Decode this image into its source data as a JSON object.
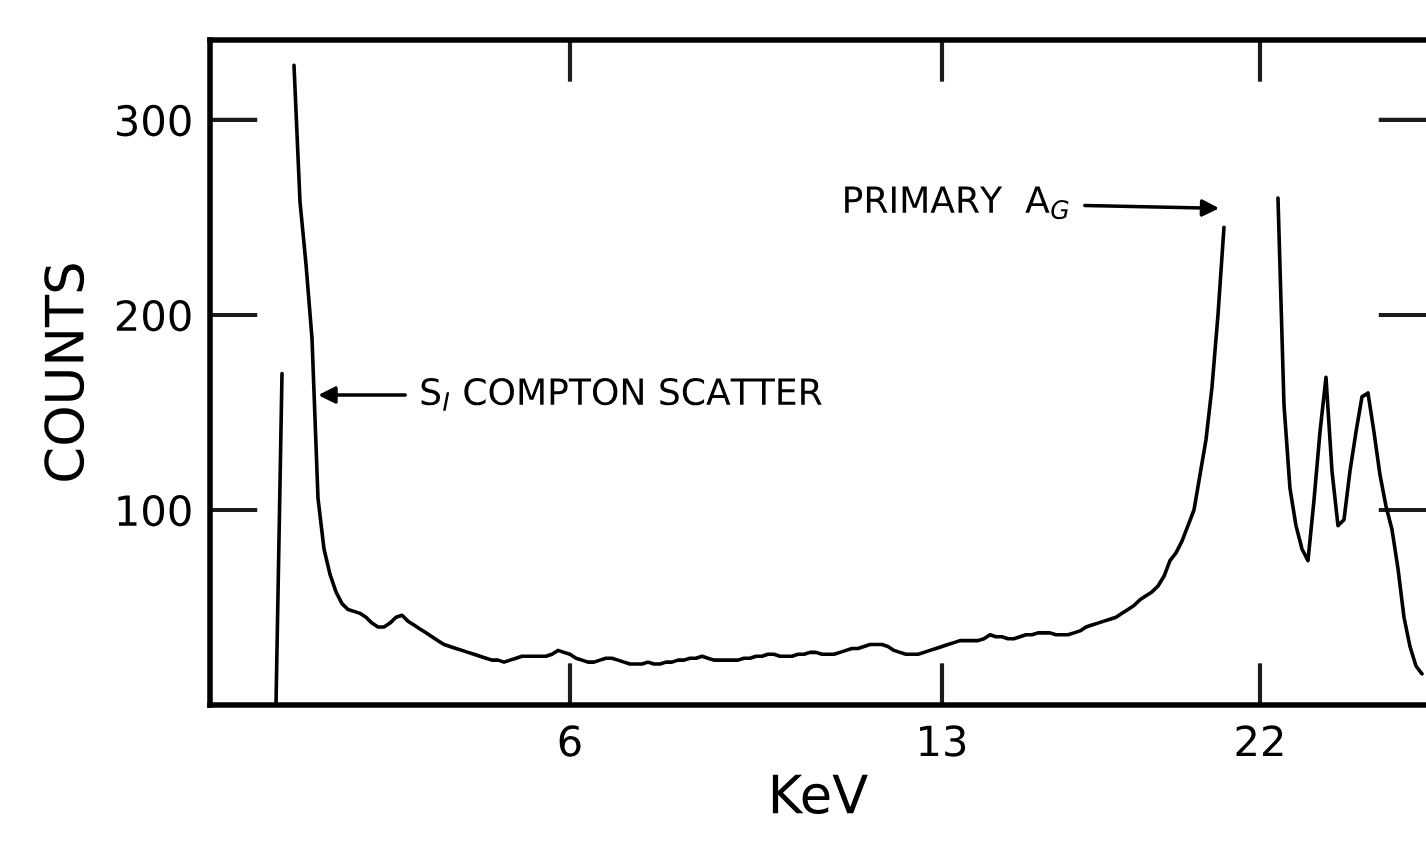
{
  "chart_data": {
    "type": "line",
    "xlabel": "KeV",
    "ylabel": "COUNTS",
    "color": "#000000",
    "ylim": [
      0,
      341
    ],
    "yticks": [
      100,
      200,
      300
    ],
    "annotations": [
      "S$_{I}$ COMPTON SCATTER",
      "PRIMARY  A$_{G}$"
    ],
    "categories": [
      null,
      null,
      null,
      null,
      null,
      null,
      null,
      null,
      null,
      null,
      null,
      null,
      null,
      null,
      null,
      null,
      null,
      null,
      null,
      null,
      null,
      null,
      null,
      null,
      null,
      null,
      null,
      null,
      null,
      null,
      null,
      null,
      null,
      null,
      null,
      null,
      null,
      null,
      null,
      null,
      null,
      null,
      null,
      null,
      null,
      null,
      null,
      null,
      null,
      null,
      null,
      null,
      null,
      null,
      null,
      null,
      null,
      null,
      null,
      null,
      "6",
      null,
      null,
      null,
      null,
      null,
      null,
      null,
      null,
      null,
      null,
      null,
      null,
      null,
      null,
      null,
      null,
      null,
      null,
      null,
      null,
      null,
      null,
      null,
      null,
      null,
      null,
      null,
      null,
      null,
      null,
      null,
      null,
      null,
      null,
      null,
      null,
      null,
      null,
      null,
      null,
      null,
      null,
      null,
      null,
      null,
      null,
      null,
      null,
      null,
      null,
      null,
      null,
      null,
      null,
      null,
      null,
      null,
      null,
      null,
      null,
      null,
      "13",
      null,
      null,
      null,
      null,
      null,
      null,
      null,
      null,
      null,
      null,
      null,
      null,
      null,
      null,
      null,
      null,
      null,
      null,
      null,
      null,
      null,
      null,
      null,
      null,
      null,
      null,
      null,
      null,
      null,
      null,
      null,
      null,
      null,
      null,
      null,
      null,
      null,
      null,
      null,
      null,
      null,
      null,
      null,
      null,
      null,
      null,
      null,
      null,
      null,
      null,
      null,
      null,
      "22",
      null,
      null,
      null,
      null,
      null,
      null,
      null,
      null,
      null,
      null,
      null,
      null,
      null,
      null,
      null,
      null,
      null,
      null,
      null,
      null,
      null,
      null,
      null,
      null,
      null,
      null,
      null
    ],
    "values": [
      null,
      null,
      null,
      null,
      null,
      null,
      null,
      null,
      null,
      null,
      null,
      0,
      170,
      null,
      328,
      258,
      226,
      188,
      106,
      80,
      67,
      58,
      52,
      49,
      48,
      47,
      45,
      42,
      40,
      40,
      42,
      45,
      46,
      43,
      41,
      39,
      37,
      35,
      33,
      31,
      30,
      29,
      28,
      27,
      26,
      25,
      24,
      23,
      23,
      22,
      23,
      24,
      25,
      25,
      25,
      25,
      25,
      26,
      28,
      27,
      26,
      24,
      23,
      22,
      22,
      23,
      24,
      24,
      23,
      22,
      21,
      21,
      21,
      22,
      21,
      21,
      22,
      22,
      23,
      23,
      24,
      24,
      25,
      24,
      23,
      23,
      23,
      23,
      23,
      24,
      24,
      25,
      25,
      26,
      26,
      25,
      25,
      25,
      26,
      26,
      27,
      27,
      26,
      26,
      26,
      27,
      28,
      29,
      29,
      30,
      31,
      31,
      31,
      30,
      28,
      27,
      26,
      26,
      26,
      27,
      28,
      29,
      30,
      31,
      32,
      33,
      33,
      33,
      33,
      34,
      36,
      35,
      35,
      34,
      34,
      35,
      36,
      36,
      37,
      37,
      37,
      36,
      36,
      36,
      37,
      38,
      40,
      41,
      42,
      43,
      44,
      45,
      47,
      49,
      51,
      54,
      56,
      58,
      61,
      66,
      74,
      78,
      84,
      92,
      100,
      118,
      136,
      163,
      200,
      245,
      null,
      null,
      null,
      null,
      null,
      null,
      null,
      null,
      260,
      154,
      111,
      92,
      80,
      74,
      105,
      140,
      168,
      120,
      92,
      95,
      120,
      140,
      158,
      160,
      140,
      118,
      102,
      90,
      70,
      45,
      30,
      20,
      16
    ]
  }
}
